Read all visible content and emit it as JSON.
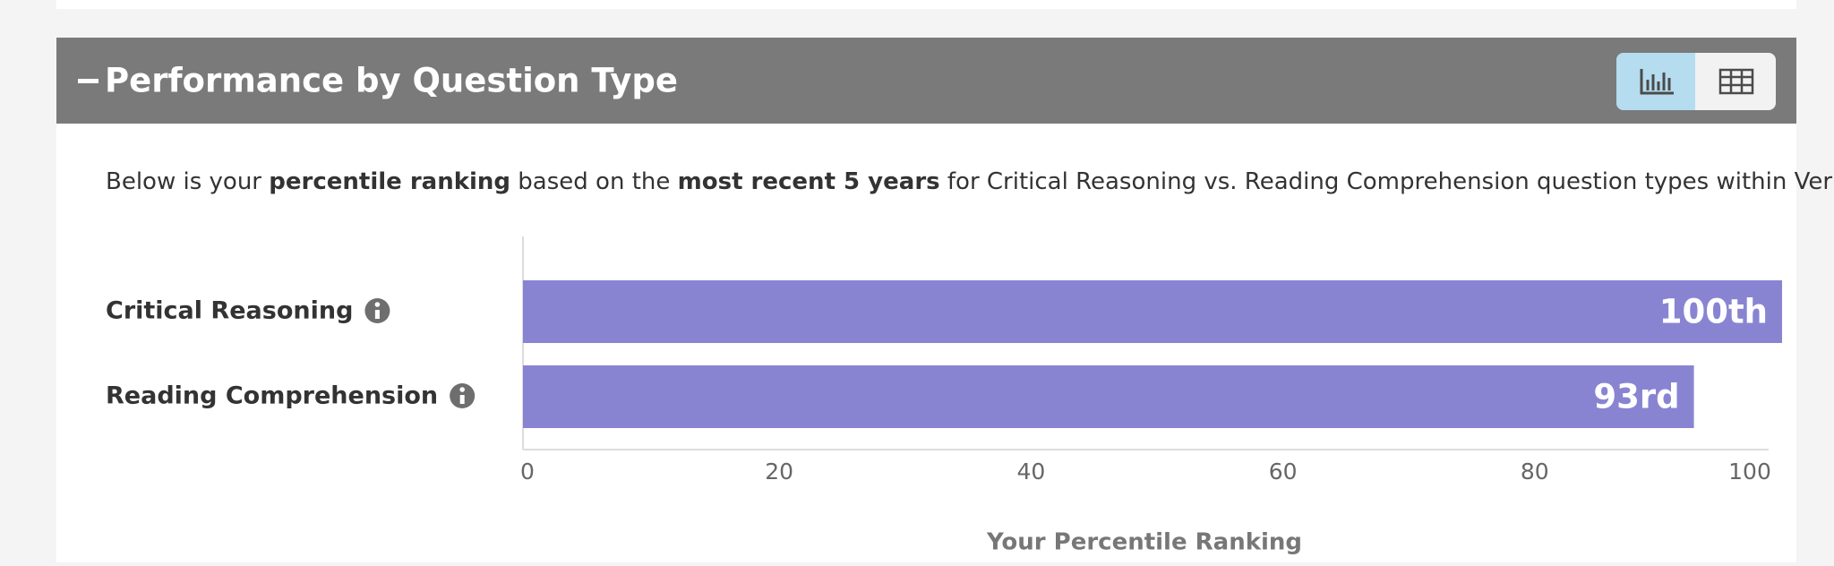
{
  "header": {
    "title": "Performance by Question Type"
  },
  "description": [
    "Below is your ",
    "percentile ranking",
    " based on the ",
    "most recent 5 years",
    " for Critical Reasoning vs. Reading Comprehension question types within Verbal Reasoning."
  ],
  "chart_data": {
    "type": "bar",
    "orientation": "horizontal",
    "categories": [
      "Critical Reasoning",
      "Reading Comprehension"
    ],
    "values": [
      100,
      93
    ],
    "value_labels": [
      "100th",
      "93rd"
    ],
    "color": "#8984d2",
    "xlim": [
      0,
      100
    ],
    "xticks": [
      0,
      20,
      40,
      60,
      80,
      100
    ],
    "xlabel": "Your Percentile Ranking"
  }
}
